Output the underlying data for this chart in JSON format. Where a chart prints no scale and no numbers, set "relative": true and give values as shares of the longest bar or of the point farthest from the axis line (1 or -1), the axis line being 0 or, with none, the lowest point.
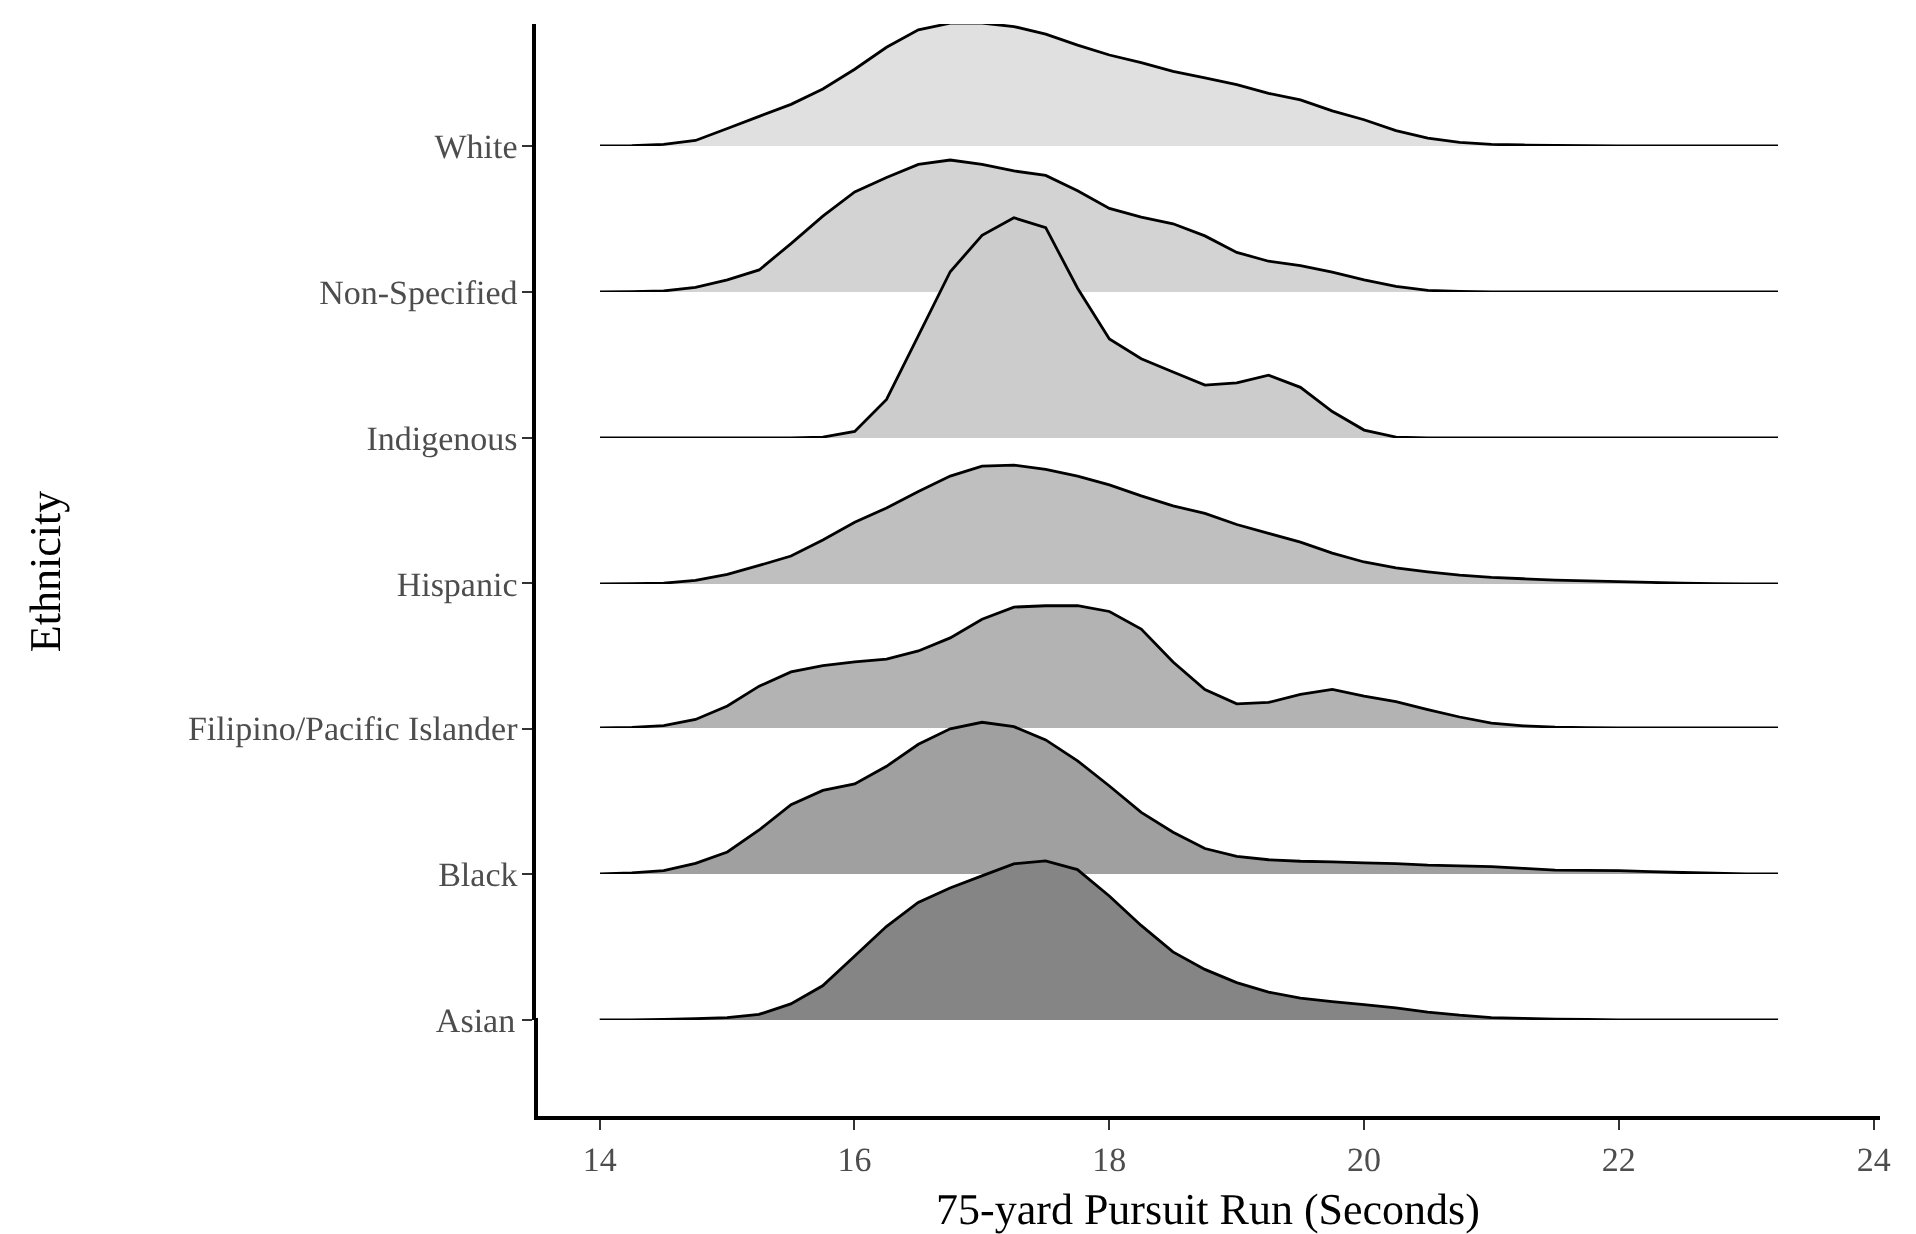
{
  "chart_data": [
    {
      "type": "area",
      "relative": true,
      "tick_labels": "y",
      "grid": false,
      "legend": false,
      "x": [
        14,
        14.25,
        14.5,
        14.75,
        15,
        15.25,
        15.5,
        15.75,
        16,
        16.25,
        16.5,
        16.75,
        17,
        17.25,
        17.5,
        17.75,
        18,
        18.25,
        18.5,
        18.75,
        19,
        19.25,
        19.5,
        19.75,
        20,
        20.25,
        20.5,
        20.75,
        21,
        21.25,
        21.5,
        21.75,
        22,
        22.25,
        22.5,
        22.75,
        23,
        23.25
      ],
      "series": [
        {
          "name": "White",
          "color": "#e0e0e0",
          "values": [
            0,
            0.003,
            0.0125,
            0.045,
            0.143,
            0.241,
            0.339,
            0.464,
            0.625,
            0.804,
            0.946,
            1,
            1,
            0.973,
            0.911,
            0.821,
            0.741,
            0.679,
            0.607,
            0.554,
            0.5,
            0.429,
            0.375,
            0.286,
            0.214,
            0.125,
            0.064,
            0.03,
            0.0125,
            0.008,
            0.005,
            0.003,
            0,
            0,
            0,
            0,
            0,
            0
          ]
        }
      ]
    },
    {
      "type": "area",
      "relative": true,
      "tick_labels": "y",
      "grid": false,
      "legend": false,
      "x": [
        14,
        14.25,
        14.5,
        14.75,
        15,
        15.25,
        15.5,
        15.75,
        16,
        16.25,
        16.5,
        16.75,
        17,
        17.25,
        17.5,
        17.75,
        18,
        18.25,
        18.5,
        18.75,
        19,
        19.25,
        19.5,
        19.75,
        20,
        20.25,
        20.5,
        20.75,
        21,
        21.25,
        21.5,
        21.75,
        22,
        22.25,
        22.5,
        22.75,
        23,
        23.25
      ],
      "series": [
        {
          "name": "Non-Specified",
          "color": "#d3d3d3",
          "values": [
            0,
            0.002,
            0.008,
            0.035,
            0.092,
            0.167,
            0.367,
            0.575,
            0.758,
            0.867,
            0.967,
            1,
            0.967,
            0.917,
            0.883,
            0.767,
            0.633,
            0.567,
            0.517,
            0.425,
            0.3,
            0.233,
            0.2,
            0.15,
            0.092,
            0.042,
            0.012,
            0.004,
            0,
            0,
            0,
            0,
            0,
            0,
            0,
            0,
            0,
            0
          ]
        }
      ]
    },
    {
      "type": "area",
      "relative": true,
      "tick_labels": "y",
      "grid": false,
      "legend": false,
      "x": [
        14,
        14.25,
        14.5,
        14.75,
        15,
        15.25,
        15.5,
        15.75,
        16,
        16.25,
        16.5,
        16.75,
        17,
        17.25,
        17.5,
        17.75,
        18,
        18.25,
        18.5,
        18.75,
        19,
        19.25,
        19.5,
        19.75,
        20,
        20.25,
        20.5,
        20.75,
        21,
        21.25,
        21.5,
        21.75,
        22,
        22.25,
        22.5,
        22.75,
        23,
        23.25
      ],
      "series": [
        {
          "name": "Indigenous",
          "color": "#cccccc",
          "values": [
            0,
            0,
            0,
            0,
            0,
            0,
            0,
            0.004,
            0.03,
            0.175,
            0.465,
            0.755,
            0.92,
            1,
            0.955,
            0.68,
            0.45,
            0.36,
            0.3,
            0.24,
            0.25,
            0.285,
            0.23,
            0.12,
            0.036,
            0.004,
            0,
            0,
            0,
            0,
            0,
            0,
            0,
            0,
            0,
            0,
            0,
            0
          ]
        }
      ]
    },
    {
      "type": "area",
      "relative": true,
      "tick_labels": "y",
      "grid": false,
      "legend": false,
      "x": [
        14,
        14.25,
        14.5,
        14.75,
        15,
        15.25,
        15.5,
        15.75,
        16,
        16.25,
        16.5,
        16.75,
        17,
        17.25,
        17.5,
        17.75,
        18,
        18.25,
        18.5,
        18.75,
        19,
        19.25,
        19.5,
        19.75,
        20,
        20.25,
        20.5,
        20.75,
        21,
        21.25,
        21.5,
        21.75,
        22,
        22.25,
        22.5,
        22.75,
        23,
        23.25
      ],
      "series": [
        {
          "name": "Hispanic",
          "color": "#bfbfbf",
          "values": [
            0,
            0.002,
            0.007,
            0.03,
            0.081,
            0.156,
            0.235,
            0.37,
            0.519,
            0.639,
            0.778,
            0.907,
            0.991,
            1,
            0.963,
            0.907,
            0.833,
            0.741,
            0.657,
            0.593,
            0.5,
            0.426,
            0.352,
            0.259,
            0.185,
            0.135,
            0.102,
            0.075,
            0.056,
            0.044,
            0.033,
            0.026,
            0.02,
            0.013,
            0.007,
            0.003,
            0,
            0
          ]
        }
      ]
    },
    {
      "type": "area",
      "relative": true,
      "tick_labels": "y",
      "grid": false,
      "legend": false,
      "x": [
        14,
        14.25,
        14.5,
        14.75,
        15,
        15.25,
        15.5,
        15.75,
        16,
        16.25,
        16.5,
        16.75,
        17,
        17.25,
        17.5,
        17.75,
        18,
        18.25,
        18.5,
        18.75,
        19,
        19.25,
        19.5,
        19.75,
        20,
        20.25,
        20.5,
        20.75,
        21,
        21.25,
        21.5,
        21.75,
        22,
        22.25,
        22.5,
        22.75,
        23,
        23.25
      ],
      "series": [
        {
          "name": "Filipino/Pacific Islander",
          "color": "#b3b3b3",
          "values": [
            0,
            0.005,
            0.02,
            0.07,
            0.18,
            0.342,
            0.459,
            0.511,
            0.54,
            0.563,
            0.63,
            0.737,
            0.89,
            0.989,
            1,
            1,
            0.953,
            0.809,
            0.54,
            0.315,
            0.198,
            0.209,
            0.275,
            0.315,
            0.261,
            0.216,
            0.151,
            0.09,
            0.04,
            0.018,
            0.007,
            0.002,
            0,
            0,
            0,
            0,
            0,
            0
          ]
        }
      ]
    },
    {
      "type": "area",
      "relative": true,
      "tick_labels": "y",
      "grid": false,
      "legend": false,
      "x": [
        14,
        14.25,
        14.5,
        14.75,
        15,
        15.25,
        15.5,
        15.75,
        16,
        16.25,
        16.5,
        16.75,
        17,
        17.25,
        17.5,
        17.75,
        18,
        18.25,
        18.5,
        18.75,
        19,
        19.25,
        19.5,
        19.75,
        20,
        20.25,
        20.5,
        20.75,
        21,
        21.25,
        21.5,
        21.75,
        22,
        22.25,
        22.5,
        22.75,
        23,
        23.25
      ],
      "series": [
        {
          "name": "Black",
          "color": "#a0a0a0",
          "values": [
            0,
            0.008,
            0.022,
            0.07,
            0.145,
            0.29,
            0.457,
            0.551,
            0.594,
            0.71,
            0.855,
            0.957,
            1,
            0.971,
            0.884,
            0.746,
            0.58,
            0.406,
            0.275,
            0.168,
            0.116,
            0.094,
            0.084,
            0.08,
            0.074,
            0.068,
            0.058,
            0.053,
            0.048,
            0.037,
            0.026,
            0.024,
            0.022,
            0.016,
            0.01,
            0.005,
            0,
            0
          ]
        }
      ]
    },
    {
      "type": "area",
      "relative": true,
      "grid": false,
      "legend": false,
      "xlabel": "75-yard Pursuit Run (Seconds)",
      "ylabel": "Ethnicity",
      "xlim": [
        13.5,
        24.05
      ],
      "xticks": [
        14,
        16,
        18,
        20,
        22,
        24
      ],
      "x": [
        14,
        14.25,
        14.5,
        14.75,
        15,
        15.25,
        15.5,
        15.75,
        16,
        16.25,
        16.5,
        16.75,
        17,
        17.25,
        17.5,
        17.75,
        18,
        18.25,
        18.5,
        18.75,
        19,
        19.25,
        19.5,
        19.75,
        20,
        20.25,
        20.5,
        20.75,
        21,
        21.25,
        21.5,
        21.75,
        22,
        22.25,
        22.5,
        22.75,
        23,
        23.25
      ],
      "series": [
        {
          "name": "Asian",
          "color": "#858585",
          "values": [
            0,
            0.001,
            0.003,
            0.008,
            0.015,
            0.035,
            0.101,
            0.215,
            0.401,
            0.587,
            0.739,
            0.829,
            0.905,
            0.981,
            1,
            0.945,
            0.779,
            0.594,
            0.428,
            0.318,
            0.235,
            0.175,
            0.138,
            0.116,
            0.097,
            0.076,
            0.05,
            0.03,
            0.015,
            0.01,
            0.006,
            0.003,
            0,
            0,
            0,
            0,
            0,
            0
          ]
        }
      ]
    }
  ]
}
